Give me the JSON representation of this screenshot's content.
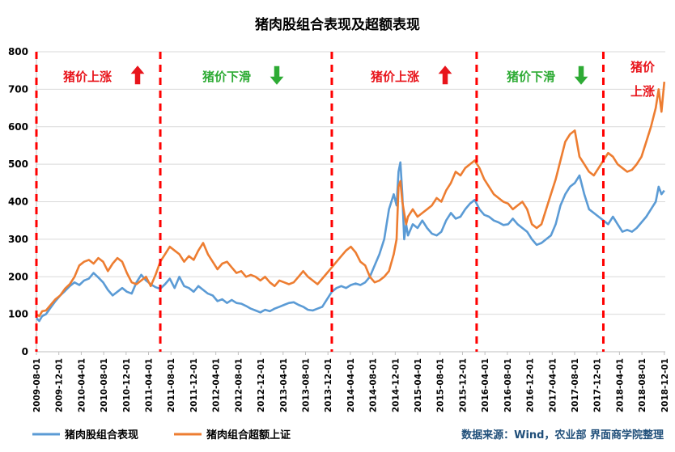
{
  "chart_data": {
    "type": "line",
    "title": "猪肉股组合表现及超额表现",
    "ylim": [
      0,
      800
    ],
    "yticks": [
      0,
      100,
      200,
      300,
      400,
      500,
      600,
      700,
      800
    ],
    "xticks": [
      "2009-08-01",
      "2009-12-01",
      "2010-04-01",
      "2010-08-01",
      "2010-12-01",
      "2011-04-01",
      "2011-08-01",
      "2011-12-01",
      "2012-04-01",
      "2012-08-01",
      "2012-12-01",
      "2013-04-01",
      "2013-08-01",
      "2013-12-01",
      "2014-04-01",
      "2014-08-01",
      "2014-12-01",
      "2015-04-01",
      "2015-08-01",
      "2015-12-01",
      "2016-04-01",
      "2016-08-01",
      "2016-12-01",
      "2017-04-01",
      "2017-08-01",
      "2017-12-01",
      "2018-04-01",
      "2018-08-01",
      "2018-12-01"
    ],
    "series": [
      {
        "name": "猪肉股组合表现",
        "color": "#5b9bd5",
        "values": [
          [
            0,
            90
          ],
          [
            0.3,
            82
          ],
          [
            0.6,
            95
          ],
          [
            1,
            100
          ],
          [
            1.5,
            118
          ],
          [
            2,
            135
          ],
          [
            2.5,
            150
          ],
          [
            3,
            162
          ],
          [
            3.5,
            175
          ],
          [
            4,
            185
          ],
          [
            4.5,
            178
          ],
          [
            5,
            190
          ],
          [
            5.5,
            195
          ],
          [
            6,
            210
          ],
          [
            6.5,
            198
          ],
          [
            7,
            185
          ],
          [
            7.5,
            165
          ],
          [
            8,
            150
          ],
          [
            8.5,
            160
          ],
          [
            9,
            170
          ],
          [
            9.5,
            160
          ],
          [
            10,
            155
          ],
          [
            10.5,
            185
          ],
          [
            11,
            205
          ],
          [
            11.5,
            190
          ],
          [
            12,
            180
          ],
          [
            12.5,
            172
          ],
          [
            13,
            168
          ],
          [
            13.5,
            180
          ],
          [
            14,
            195
          ],
          [
            14.5,
            170
          ],
          [
            15,
            200
          ],
          [
            15.5,
            175
          ],
          [
            16,
            170
          ],
          [
            16.5,
            160
          ],
          [
            17,
            175
          ],
          [
            17.5,
            165
          ],
          [
            18,
            155
          ],
          [
            18.5,
            150
          ],
          [
            19,
            135
          ],
          [
            19.5,
            140
          ],
          [
            20,
            130
          ],
          [
            20.5,
            138
          ],
          [
            21,
            130
          ],
          [
            21.5,
            128
          ],
          [
            22,
            122
          ],
          [
            22.5,
            115
          ],
          [
            23,
            110
          ],
          [
            23.5,
            105
          ],
          [
            24,
            112
          ],
          [
            24.5,
            108
          ],
          [
            25,
            115
          ],
          [
            25.5,
            120
          ],
          [
            26,
            125
          ],
          [
            26.5,
            130
          ],
          [
            27,
            132
          ],
          [
            27.5,
            125
          ],
          [
            28,
            120
          ],
          [
            28.5,
            112
          ],
          [
            29,
            110
          ],
          [
            29.5,
            115
          ],
          [
            30,
            120
          ],
          [
            30.5,
            140
          ],
          [
            31,
            160
          ],
          [
            31.5,
            170
          ],
          [
            32,
            175
          ],
          [
            32.5,
            170
          ],
          [
            33,
            178
          ],
          [
            33.5,
            182
          ],
          [
            34,
            178
          ],
          [
            34.5,
            185
          ],
          [
            35,
            200
          ],
          [
            35.5,
            230
          ],
          [
            36,
            260
          ],
          [
            36.5,
            300
          ],
          [
            37,
            380
          ],
          [
            37.5,
            420
          ],
          [
            37.8,
            390
          ],
          [
            38,
            480
          ],
          [
            38.2,
            505
          ],
          [
            38.4,
            420
          ],
          [
            38.6,
            300
          ],
          [
            38.8,
            340
          ],
          [
            39,
            310
          ],
          [
            39.5,
            340
          ],
          [
            40,
            330
          ],
          [
            40.5,
            350
          ],
          [
            41,
            330
          ],
          [
            41.5,
            315
          ],
          [
            42,
            310
          ],
          [
            42.5,
            320
          ],
          [
            43,
            350
          ],
          [
            43.5,
            370
          ],
          [
            44,
            355
          ],
          [
            44.5,
            360
          ],
          [
            45,
            380
          ],
          [
            45.5,
            395
          ],
          [
            46,
            405
          ],
          [
            46.5,
            380
          ],
          [
            47,
            365
          ],
          [
            47.5,
            360
          ],
          [
            48,
            350
          ],
          [
            48.5,
            345
          ],
          [
            49,
            338
          ],
          [
            49.5,
            340
          ],
          [
            50,
            355
          ],
          [
            50.5,
            340
          ],
          [
            51,
            330
          ],
          [
            51.5,
            320
          ],
          [
            52,
            300
          ],
          [
            52.5,
            285
          ],
          [
            53,
            290
          ],
          [
            53.5,
            300
          ],
          [
            54,
            310
          ],
          [
            54.5,
            340
          ],
          [
            55,
            390
          ],
          [
            55.5,
            420
          ],
          [
            56,
            440
          ],
          [
            56.5,
            450
          ],
          [
            57,
            470
          ],
          [
            57.5,
            420
          ],
          [
            58,
            380
          ],
          [
            58.5,
            370
          ],
          [
            59,
            360
          ],
          [
            59.5,
            350
          ],
          [
            60,
            340
          ],
          [
            60.5,
            360
          ],
          [
            61,
            340
          ],
          [
            61.5,
            320
          ],
          [
            62,
            325
          ],
          [
            62.5,
            320
          ],
          [
            63,
            330
          ],
          [
            63.5,
            345
          ],
          [
            64,
            360
          ],
          [
            64.5,
            380
          ],
          [
            65,
            400
          ],
          [
            65.3,
            440
          ],
          [
            65.6,
            420
          ],
          [
            65.9,
            430
          ]
        ]
      },
      {
        "name": "猪肉组合超额上证",
        "color": "#ed7d31",
        "values": [
          [
            0,
            100
          ],
          [
            0.3,
            95
          ],
          [
            0.6,
            108
          ],
          [
            1,
            110
          ],
          [
            1.5,
            125
          ],
          [
            2,
            140
          ],
          [
            2.5,
            150
          ],
          [
            3,
            168
          ],
          [
            3.5,
            180
          ],
          [
            4,
            200
          ],
          [
            4.5,
            230
          ],
          [
            5,
            240
          ],
          [
            5.5,
            245
          ],
          [
            6,
            235
          ],
          [
            6.5,
            250
          ],
          [
            7,
            240
          ],
          [
            7.5,
            215
          ],
          [
            8,
            235
          ],
          [
            8.5,
            250
          ],
          [
            9,
            240
          ],
          [
            9.5,
            210
          ],
          [
            10,
            185
          ],
          [
            10.5,
            180
          ],
          [
            11,
            190
          ],
          [
            11.5,
            200
          ],
          [
            12,
            175
          ],
          [
            12.5,
            205
          ],
          [
            13,
            240
          ],
          [
            13.5,
            260
          ],
          [
            14,
            280
          ],
          [
            14.5,
            270
          ],
          [
            15,
            260
          ],
          [
            15.5,
            240
          ],
          [
            16,
            255
          ],
          [
            16.5,
            245
          ],
          [
            17,
            270
          ],
          [
            17.5,
            290
          ],
          [
            18,
            260
          ],
          [
            18.5,
            240
          ],
          [
            19,
            220
          ],
          [
            19.5,
            235
          ],
          [
            20,
            240
          ],
          [
            20.5,
            225
          ],
          [
            21,
            210
          ],
          [
            21.5,
            215
          ],
          [
            22,
            200
          ],
          [
            22.5,
            205
          ],
          [
            23,
            200
          ],
          [
            23.5,
            190
          ],
          [
            24,
            200
          ],
          [
            24.5,
            185
          ],
          [
            25,
            175
          ],
          [
            25.5,
            190
          ],
          [
            26,
            185
          ],
          [
            26.5,
            180
          ],
          [
            27,
            185
          ],
          [
            27.5,
            200
          ],
          [
            28,
            215
          ],
          [
            28.5,
            200
          ],
          [
            29,
            190
          ],
          [
            29.5,
            180
          ],
          [
            30,
            195
          ],
          [
            30.5,
            210
          ],
          [
            31,
            225
          ],
          [
            31.5,
            240
          ],
          [
            32,
            255
          ],
          [
            32.5,
            270
          ],
          [
            33,
            280
          ],
          [
            33.5,
            265
          ],
          [
            34,
            240
          ],
          [
            34.5,
            230
          ],
          [
            35,
            200
          ],
          [
            35.5,
            185
          ],
          [
            36,
            190
          ],
          [
            36.5,
            200
          ],
          [
            37,
            215
          ],
          [
            37.5,
            260
          ],
          [
            37.8,
            300
          ],
          [
            38,
            440
          ],
          [
            38.2,
            455
          ],
          [
            38.4,
            400
          ],
          [
            38.6,
            370
          ],
          [
            38.8,
            340
          ],
          [
            39,
            360
          ],
          [
            39.5,
            380
          ],
          [
            40,
            360
          ],
          [
            40.5,
            370
          ],
          [
            41,
            380
          ],
          [
            41.5,
            390
          ],
          [
            42,
            410
          ],
          [
            42.5,
            400
          ],
          [
            43,
            430
          ],
          [
            43.5,
            450
          ],
          [
            44,
            480
          ],
          [
            44.5,
            470
          ],
          [
            45,
            490
          ],
          [
            45.5,
            500
          ],
          [
            46,
            510
          ],
          [
            46.5,
            490
          ],
          [
            47,
            460
          ],
          [
            47.5,
            440
          ],
          [
            48,
            420
          ],
          [
            48.5,
            410
          ],
          [
            49,
            400
          ],
          [
            49.5,
            395
          ],
          [
            50,
            380
          ],
          [
            50.5,
            390
          ],
          [
            51,
            400
          ],
          [
            51.5,
            380
          ],
          [
            52,
            340
          ],
          [
            52.5,
            330
          ],
          [
            53,
            340
          ],
          [
            53.5,
            380
          ],
          [
            54,
            420
          ],
          [
            54.5,
            460
          ],
          [
            55,
            510
          ],
          [
            55.5,
            560
          ],
          [
            56,
            580
          ],
          [
            56.5,
            590
          ],
          [
            57,
            520
          ],
          [
            57.5,
            500
          ],
          [
            58,
            480
          ],
          [
            58.5,
            470
          ],
          [
            59,
            490
          ],
          [
            59.5,
            510
          ],
          [
            60,
            530
          ],
          [
            60.5,
            520
          ],
          [
            61,
            500
          ],
          [
            61.5,
            490
          ],
          [
            62,
            480
          ],
          [
            62.5,
            485
          ],
          [
            63,
            500
          ],
          [
            63.5,
            520
          ],
          [
            64,
            560
          ],
          [
            64.5,
            600
          ],
          [
            65,
            650
          ],
          [
            65.3,
            700
          ],
          [
            65.6,
            640
          ],
          [
            65.9,
            720
          ]
        ]
      }
    ],
    "phases": [
      {
        "label": "猪价上涨",
        "direction": "up"
      },
      {
        "label": "猪价下滑",
        "direction": "down"
      },
      {
        "label": "猪价上涨",
        "direction": "up"
      },
      {
        "label": "猪价下滑",
        "direction": "down"
      },
      {
        "label1": "猪价",
        "label2": "上涨",
        "direction": "up"
      }
    ],
    "dividers_xindex": [
      0,
      13,
      31,
      46.2,
      59.5
    ],
    "phase_colors": {
      "up": "#e8141b",
      "down": "#2eab35"
    },
    "source": "数据来源：Wind，农业部   界面商学院整理"
  }
}
